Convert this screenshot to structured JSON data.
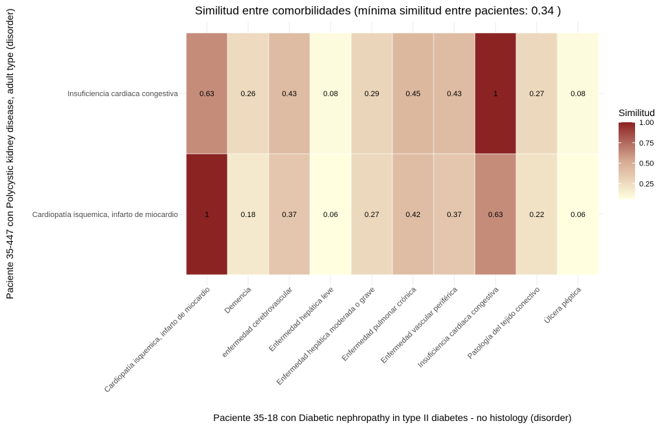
{
  "chart_data": {
    "type": "heatmap",
    "title": "Similitud entre comorbilidades (mínima similitud entre pacientes:  0.34 )",
    "xlabel": "Paciente 35-18 con Diabetic nephropathy in type II diabetes - no histology (disorder)",
    "ylabel": "Paciente 35-447 con Polycystic kidney disease, adult type (disorder)",
    "x_categories": [
      "Cardiopatía isquemica, infarto de miocardio",
      "Demencia",
      "enfermedad cerebrovascular",
      "Enfermedad hepática leve",
      "Enfermedad hepática moderada o grave",
      "Enfermedad pulmonar crónica",
      "Enfermedad vascular periférica",
      "Insuficiencia cardiaca congestiva",
      "Patología del tejido conectivo",
      "Úlcera péptica"
    ],
    "y_categories": [
      "Insuficiencia cardiaca congestiva",
      "Cardiopatía isquemica, infarto de miocardio"
    ],
    "values": [
      [
        0.63,
        0.26,
        0.43,
        0.08,
        0.29,
        0.45,
        0.43,
        1,
        0.27,
        0.08
      ],
      [
        1,
        0.18,
        0.37,
        0.06,
        0.27,
        0.42,
        0.37,
        0.63,
        0.22,
        0.06
      ]
    ],
    "labels": [
      [
        "0.63",
        "0.26",
        "0.43",
        "0.08",
        "0.29",
        "0.45",
        "0.43",
        "1",
        "0.27",
        "0.08"
      ],
      [
        "1",
        "0.18",
        "0.37",
        "0.06",
        "0.27",
        "0.42",
        "0.37",
        "0.63",
        "0.22",
        "0.06"
      ]
    ],
    "legend": {
      "title": "Similitud",
      "ticks": [
        "1.00",
        "0.75",
        "0.50",
        "0.25"
      ],
      "tick_values": [
        1.0,
        0.75,
        0.5,
        0.25
      ],
      "range": [
        0.06,
        1.0
      ],
      "placement": "right"
    },
    "colors": {
      "low": "#FFFFE0",
      "mid": "#D5A992",
      "high": "#8B2323"
    },
    "grid": true
  }
}
